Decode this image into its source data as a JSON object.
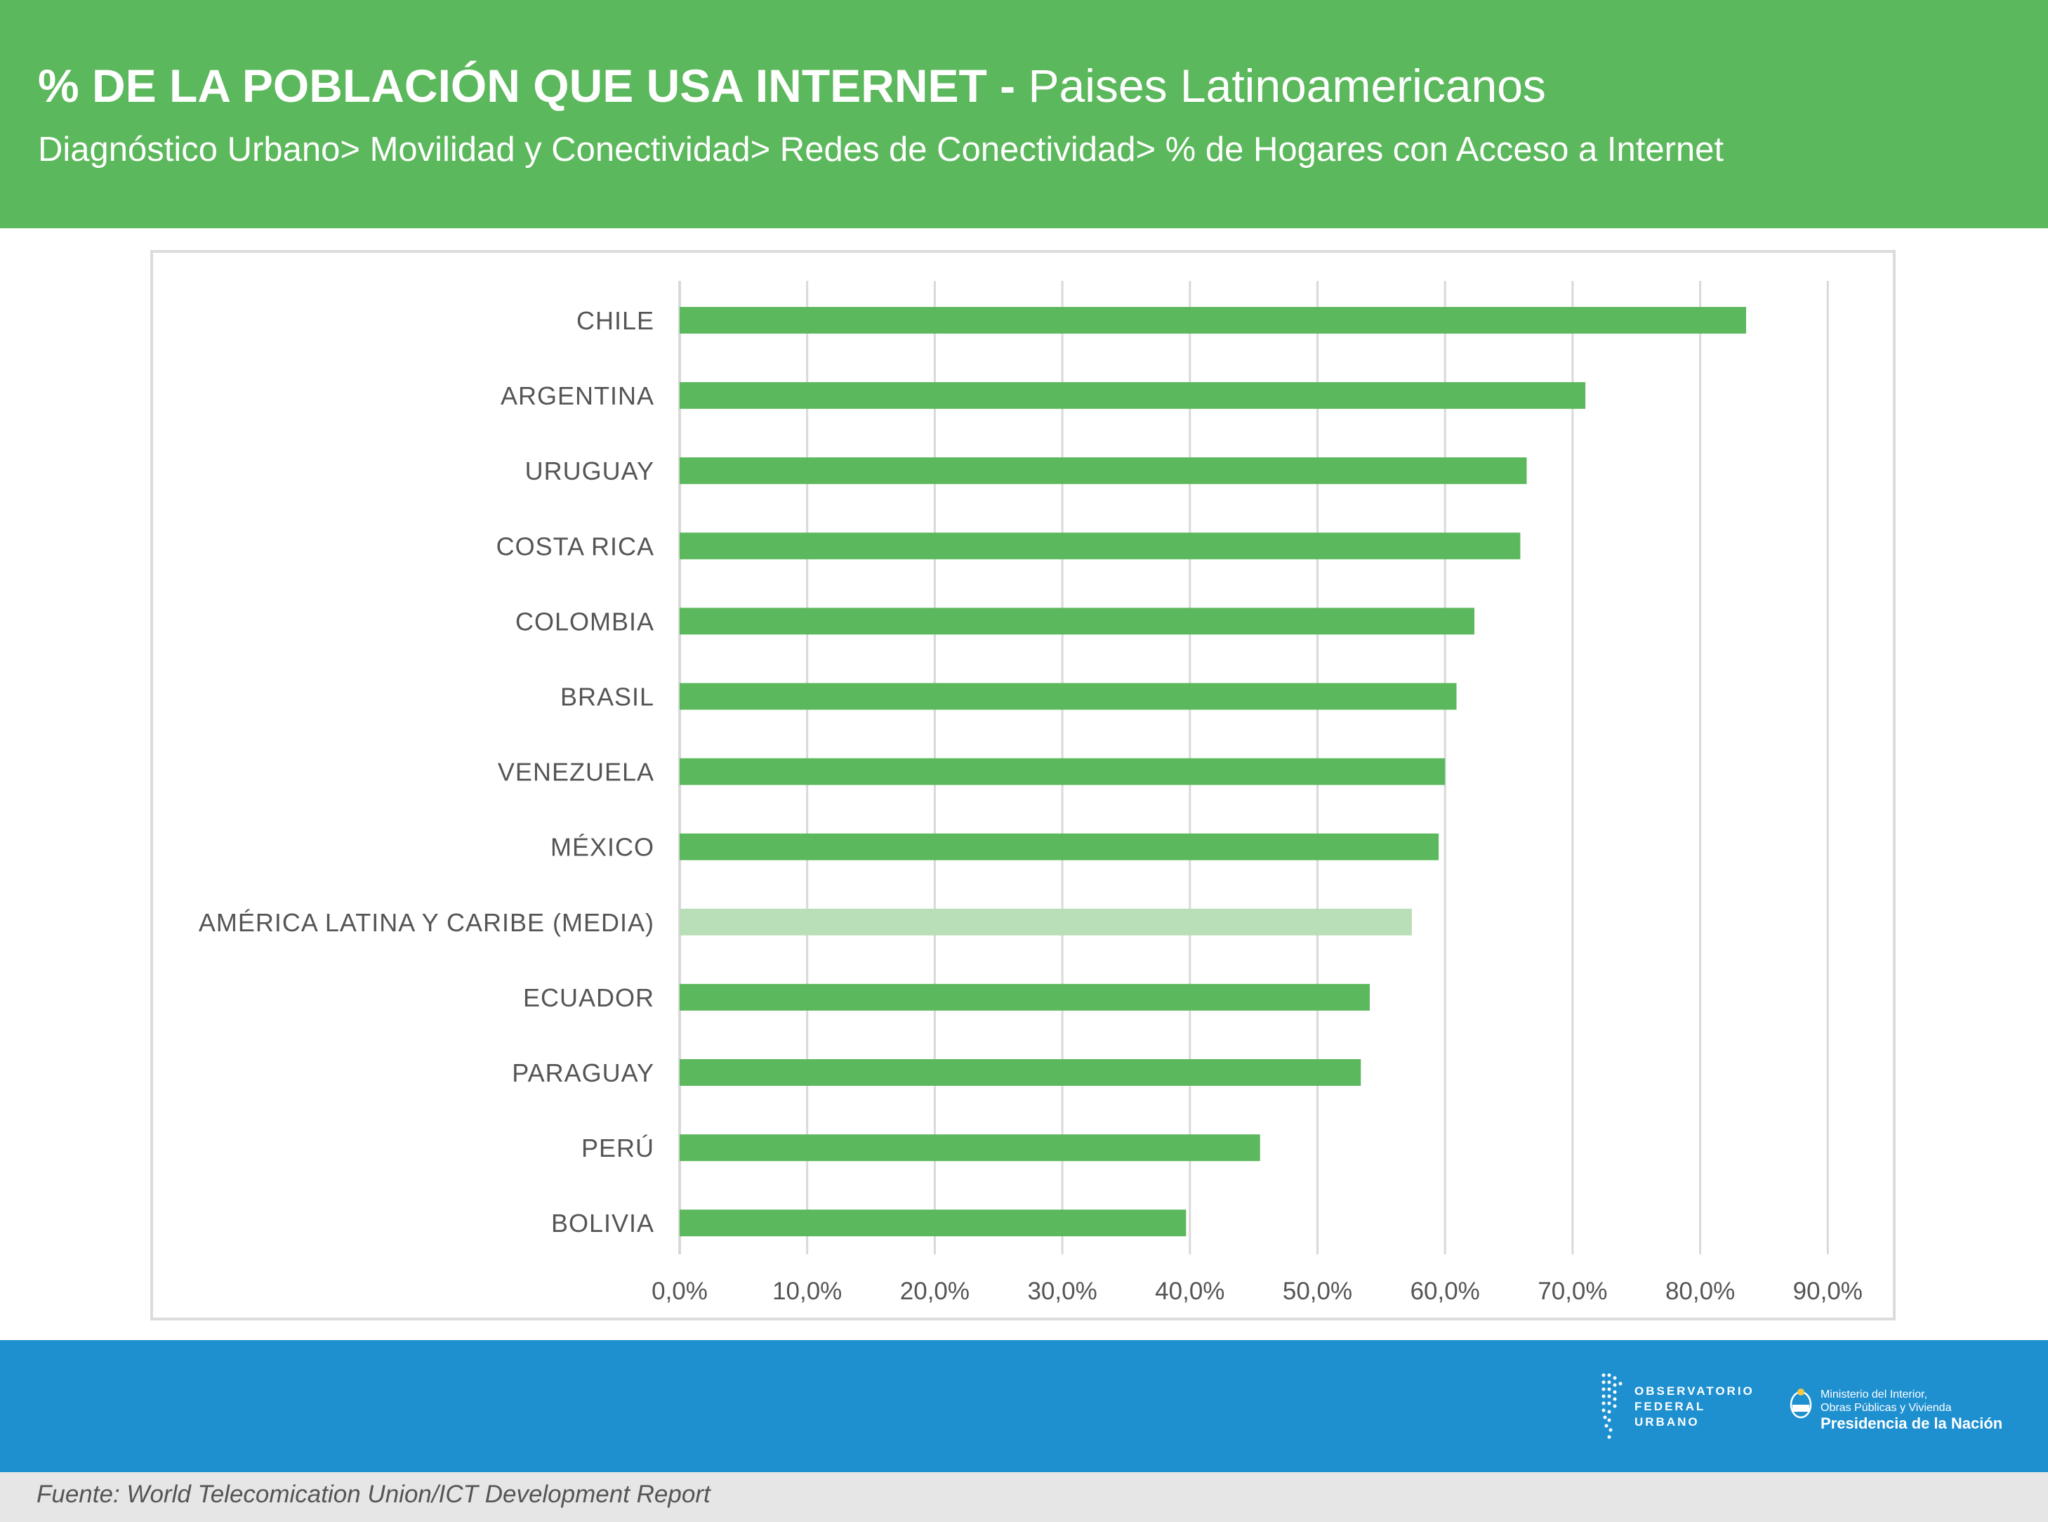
{
  "header": {
    "title_bold": "% DE LA POBLACIÓN QUE USA INTERNET -",
    "title_light": "Paises Latinoamericanos",
    "breadcrumb": "Diagnóstico Urbano> Movilidad y Conectividad> Redes de Conectividad> % de Hogares con Acceso a Internet"
  },
  "colors": {
    "header_bg": "#5cb85c",
    "bar": "#5cb85c",
    "bar_highlight": "#b9dfb9",
    "footer_bg": "#1e90d0",
    "grid": "#d9d9d9",
    "label": "#555555"
  },
  "chart_data": {
    "type": "bar",
    "orientation": "horizontal",
    "categories": [
      "CHILE",
      "ARGENTINA",
      "URUGUAY",
      "COSTA RICA",
      "COLOMBIA",
      "BRASIL",
      "VENEZUELA",
      "MÉXICO",
      "AMÉRICA LATINA Y CARIBE (MEDIA)",
      "ECUADOR",
      "PARAGUAY",
      "PERÚ",
      "BOLIVIA"
    ],
    "values": [
      83.6,
      71.0,
      66.4,
      65.9,
      62.3,
      60.9,
      60.0,
      59.5,
      57.4,
      54.1,
      53.4,
      45.5,
      39.7
    ],
    "highlight": [
      "AMÉRICA LATINA Y CARIBE (MEDIA)"
    ],
    "xlim": [
      0,
      90
    ],
    "xticks": [
      "0,0%",
      "10,0%",
      "20,0%",
      "30,0%",
      "40,0%",
      "50,0%",
      "60,0%",
      "70,0%",
      "80,0%",
      "90,0%"
    ],
    "grid": true,
    "legend": "none"
  },
  "footer": {
    "source": "Fuente: World Telecomication Union/ICT Development Report",
    "org1": [
      "OBSERVATORIO",
      "FEDERAL",
      "URBANO"
    ],
    "org2_line1": "Ministerio del Interior,",
    "org2_line2": "Obras Públicas y Vivienda",
    "org2_line3": "Presidencia de la Nación"
  }
}
